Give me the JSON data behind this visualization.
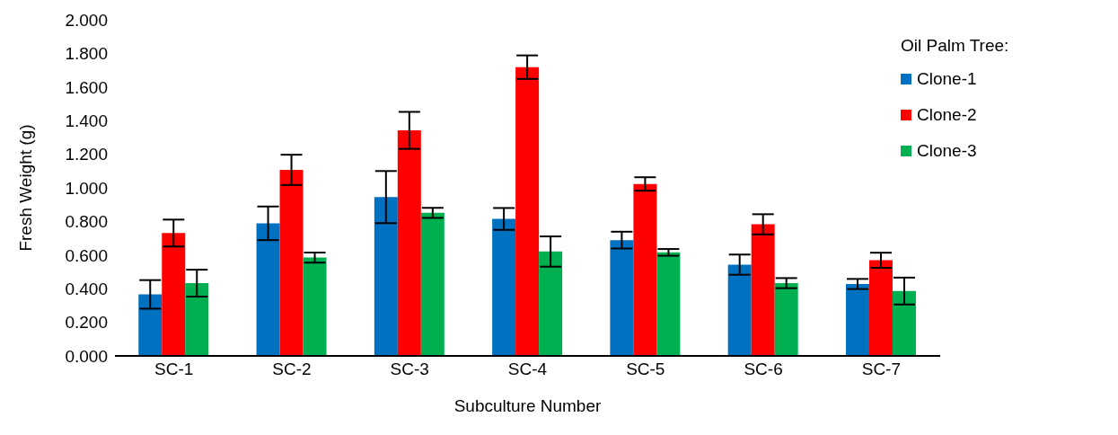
{
  "chart_data": {
    "type": "bar",
    "xlabel": "Subculture Number",
    "ylabel": "Fresh Weight (g)",
    "legend_title": "Oil Palm Tree:",
    "legend": "top right",
    "grid": false,
    "categories": [
      "SC-1",
      "SC-2",
      "SC-3",
      "SC-4",
      "SC-5",
      "SC-6",
      "SC-7"
    ],
    "ylim": [
      0,
      2
    ],
    "yticks": [
      {
        "value": 0,
        "label": "0.000"
      },
      {
        "value": 0.2,
        "label": "0.200"
      },
      {
        "value": 0.4,
        "label": "0.400"
      },
      {
        "value": 0.6,
        "label": "0.600"
      },
      {
        "value": 0.8,
        "label": "0.800"
      },
      {
        "value": 1,
        "label": "1.000"
      },
      {
        "value": 1.2,
        "label": "1.200"
      },
      {
        "value": 1.4,
        "label": "1.400"
      },
      {
        "value": 1.6,
        "label": "1.600"
      },
      {
        "value": 1.8,
        "label": "1.800"
      },
      {
        "value": 2,
        "label": "2.000"
      }
    ],
    "series": [
      {
        "name": "Clone-1",
        "color": "#0070c0",
        "values": [
          0.366,
          0.789,
          0.945,
          0.815,
          0.689,
          0.543,
          0.428
        ],
        "errors": [
          0.085,
          0.1,
          0.155,
          0.065,
          0.05,
          0.06,
          0.03
        ]
      },
      {
        "name": "Clone-2",
        "color": "#ff0000",
        "values": [
          0.731,
          1.107,
          1.342,
          1.718,
          1.023,
          0.783,
          0.569
        ],
        "errors": [
          0.08,
          0.09,
          0.11,
          0.07,
          0.04,
          0.06,
          0.045
        ]
      },
      {
        "name": "Clone-3",
        "color": "#00b050",
        "values": [
          0.433,
          0.585,
          0.851,
          0.621,
          0.616,
          0.433,
          0.386
        ],
        "errors": [
          0.08,
          0.03,
          0.03,
          0.09,
          0.02,
          0.03,
          0.08
        ]
      }
    ]
  }
}
